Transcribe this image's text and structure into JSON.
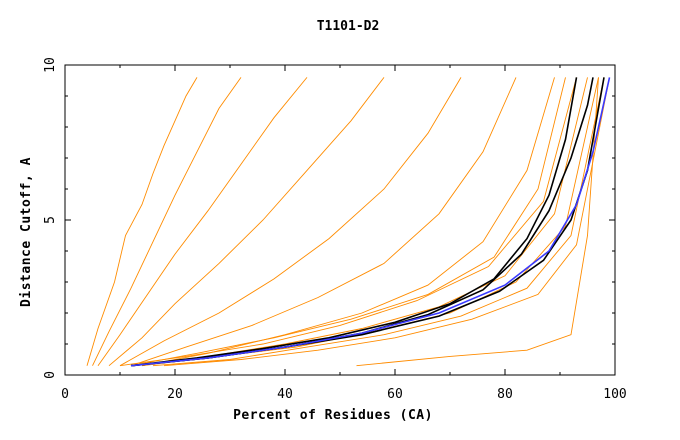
{
  "chart_data": {
    "type": "line",
    "title": "T1101-D2",
    "xlabel": "Percent of Residues (CA)",
    "ylabel": "Distance Cutoff, A",
    "xlim": [
      0,
      100
    ],
    "ylim": [
      0,
      10
    ],
    "x_ticks": [
      "0",
      "20",
      "40",
      "60",
      "80",
      "100"
    ],
    "y_ticks": [
      "0",
      "5",
      "10"
    ],
    "grid": false,
    "colors": {
      "many_models": "#ff8c00",
      "highlight_black": "#000000",
      "highlight_blue": "#3a3aff"
    },
    "series": [
      {
        "group": "many_models",
        "color": "#ff8c00",
        "x": [
          4,
          6,
          9,
          11,
          14,
          16,
          18,
          20,
          22,
          24
        ],
        "y": [
          0.3,
          1.5,
          3,
          4.5,
          5.5,
          6.5,
          7.4,
          8.2,
          9,
          9.6
        ]
      },
      {
        "group": "many_models",
        "color": "#ff8c00",
        "x": [
          5,
          8,
          12,
          16,
          20,
          24,
          28,
          32
        ],
        "y": [
          0.3,
          1.4,
          2.8,
          4.3,
          5.8,
          7.2,
          8.6,
          9.6
        ]
      },
      {
        "group": "many_models",
        "color": "#ff8c00",
        "x": [
          6,
          10,
          15,
          20,
          26,
          32,
          38,
          44
        ],
        "y": [
          0.3,
          1.3,
          2.6,
          3.9,
          5.3,
          6.8,
          8.3,
          9.6
        ]
      },
      {
        "group": "many_models",
        "color": "#ff8c00",
        "x": [
          8,
          14,
          20,
          28,
          36,
          44,
          52,
          58
        ],
        "y": [
          0.3,
          1.2,
          2.3,
          3.6,
          5.0,
          6.6,
          8.2,
          9.6
        ]
      },
      {
        "group": "many_models",
        "color": "#ff8c00",
        "x": [
          10,
          18,
          28,
          38,
          48,
          58,
          66,
          72
        ],
        "y": [
          0.3,
          1.1,
          2.0,
          3.1,
          4.4,
          6.0,
          7.8,
          9.6
        ]
      },
      {
        "group": "many_models",
        "color": "#ff8c00",
        "x": [
          12,
          22,
          34,
          46,
          58,
          68,
          76,
          82
        ],
        "y": [
          0.3,
          0.9,
          1.6,
          2.5,
          3.6,
          5.2,
          7.2,
          9.6
        ]
      },
      {
        "group": "many_models",
        "color": "#ff8c00",
        "x": [
          14,
          26,
          40,
          54,
          66,
          76,
          84,
          89
        ],
        "y": [
          0.3,
          0.7,
          1.3,
          2.0,
          2.9,
          4.3,
          6.6,
          9.6
        ]
      },
      {
        "group": "many_models",
        "color": "#ff8c00",
        "x": [
          12,
          24,
          38,
          52,
          66,
          78,
          86,
          91
        ],
        "y": [
          0.3,
          0.7,
          1.2,
          1.8,
          2.6,
          3.8,
          6.0,
          9.6
        ]
      },
      {
        "group": "many_models",
        "color": "#ff8c00",
        "x": [
          10,
          22,
          36,
          50,
          64,
          77,
          87,
          93
        ],
        "y": [
          0.3,
          0.6,
          1.0,
          1.6,
          2.4,
          3.5,
          5.6,
          9.6
        ]
      },
      {
        "group": "many_models",
        "color": "#ff8c00",
        "x": [
          12,
          26,
          40,
          54,
          68,
          80,
          89,
          95
        ],
        "y": [
          0.3,
          0.6,
          1.0,
          1.5,
          2.2,
          3.2,
          5.2,
          9.6
        ]
      },
      {
        "group": "many_models",
        "color": "#ff8c00",
        "x": [
          14,
          28,
          42,
          56,
          70,
          82,
          91,
          97
        ],
        "y": [
          0.3,
          0.6,
          0.9,
          1.4,
          2.0,
          3.0,
          4.8,
          9.6
        ]
      },
      {
        "group": "many_models",
        "color": "#ff8c00",
        "x": [
          16,
          30,
          44,
          58,
          72,
          84,
          92,
          98
        ],
        "y": [
          0.3,
          0.5,
          0.9,
          1.3,
          1.9,
          2.8,
          4.5,
          9.6
        ]
      },
      {
        "group": "many_models",
        "color": "#ff8c00",
        "x": [
          18,
          32,
          46,
          60,
          74,
          86,
          93,
          99
        ],
        "y": [
          0.3,
          0.5,
          0.8,
          1.2,
          1.8,
          2.6,
          4.2,
          9.6
        ]
      },
      {
        "group": "many_models",
        "color": "#ff8c00",
        "x": [
          53,
          70,
          84,
          92,
          95,
          97
        ],
        "y": [
          0.3,
          0.6,
          0.8,
          1.3,
          4.5,
          9.6
        ]
      },
      {
        "group": "highlight",
        "color": "#000000",
        "x": [
          12,
          24,
          36,
          48,
          60,
          70,
          78,
          84,
          88,
          91,
          93
        ],
        "y": [
          0.3,
          0.55,
          0.85,
          1.2,
          1.7,
          2.3,
          3.1,
          4.4,
          5.8,
          7.6,
          9.6
        ]
      },
      {
        "group": "highlight",
        "color": "#000000",
        "x": [
          12,
          26,
          40,
          54,
          66,
          76,
          83,
          88,
          92,
          95,
          96
        ],
        "y": [
          0.3,
          0.55,
          0.9,
          1.35,
          1.95,
          2.75,
          3.9,
          5.3,
          7.0,
          8.7,
          9.6
        ]
      },
      {
        "group": "highlight",
        "color": "#000000",
        "x": [
          12,
          26,
          40,
          54,
          68,
          79,
          87,
          92,
          95,
          97,
          98
        ],
        "y": [
          0.3,
          0.55,
          0.9,
          1.3,
          1.9,
          2.7,
          3.7,
          5.0,
          6.6,
          8.6,
          9.6
        ]
      },
      {
        "group": "highlight",
        "color": "#3a3aff",
        "x": [
          12,
          26,
          40,
          54,
          68,
          80,
          88,
          93,
          96,
          98,
          99
        ],
        "y": [
          0.3,
          0.55,
          0.9,
          1.35,
          2.0,
          2.9,
          4.0,
          5.5,
          7.2,
          8.8,
          9.6
        ]
      }
    ]
  }
}
